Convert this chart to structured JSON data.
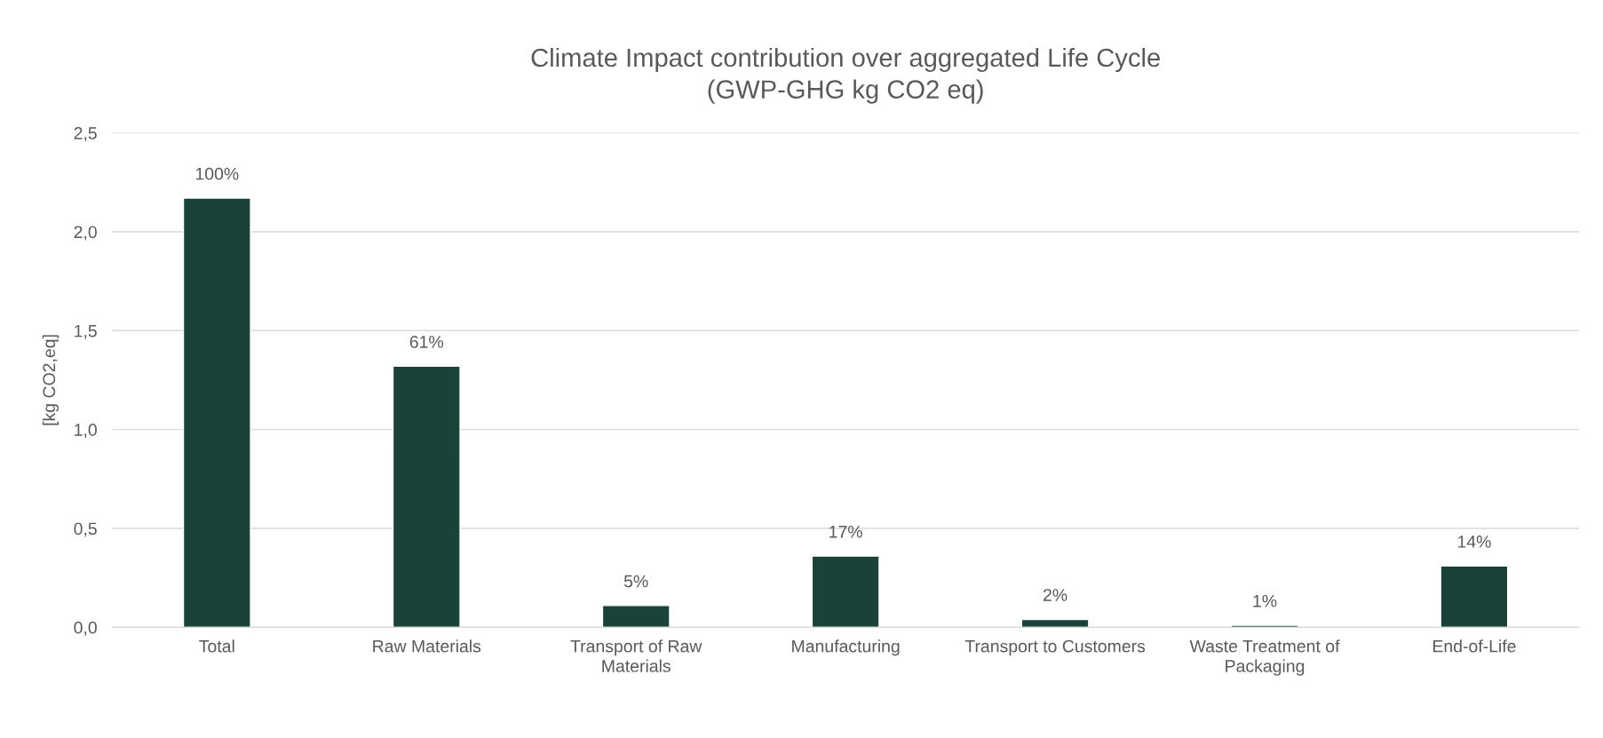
{
  "chart_data": {
    "type": "bar",
    "title": "Climate Impact contribution over aggregated Life Cycle\n(GWP-GHG kg CO2 eq)",
    "ylabel": "[kg CO2,eq]",
    "categories": [
      "Total",
      "Raw Materials",
      "Transport of Raw\nMaterials",
      "Manufacturing",
      "Transport to Customers",
      "Waste Treatment of\nPackaging",
      "End-of-Life"
    ],
    "values": [
      2.17,
      1.32,
      0.11,
      0.36,
      0.04,
      0.01,
      0.31
    ],
    "annotations": [
      {
        "text": "100%",
        "x": "Total",
        "y": 2.17
      },
      {
        "text": "61%",
        "x": "Raw Materials",
        "y": 1.32
      },
      {
        "text": "5%",
        "x": "Transport of Raw\nMaterials",
        "y": 0.11
      },
      {
        "text": "17%",
        "x": "Manufacturing",
        "y": 0.36
      },
      {
        "text": "2%",
        "x": "Transport to Customers",
        "y": 0.04
      },
      {
        "text": "1%",
        "x": "Waste Treatment of\nPackaging",
        "y": 0.01
      },
      {
        "text": "14%",
        "x": "End-of-Life",
        "y": 0.31
      }
    ],
    "color": "#1b4238",
    "ylim": [
      0,
      2.5
    ],
    "yticks": [
      {
        "value": 0,
        "label": "0,0"
      },
      {
        "value": 0.5,
        "label": "0,5"
      },
      {
        "value": 1,
        "label": "1,0"
      },
      {
        "value": 1.5,
        "label": "1,5"
      },
      {
        "value": 2,
        "label": "2,0"
      },
      {
        "value": 2.5,
        "label": "2,5"
      }
    ],
    "grid": "y"
  }
}
